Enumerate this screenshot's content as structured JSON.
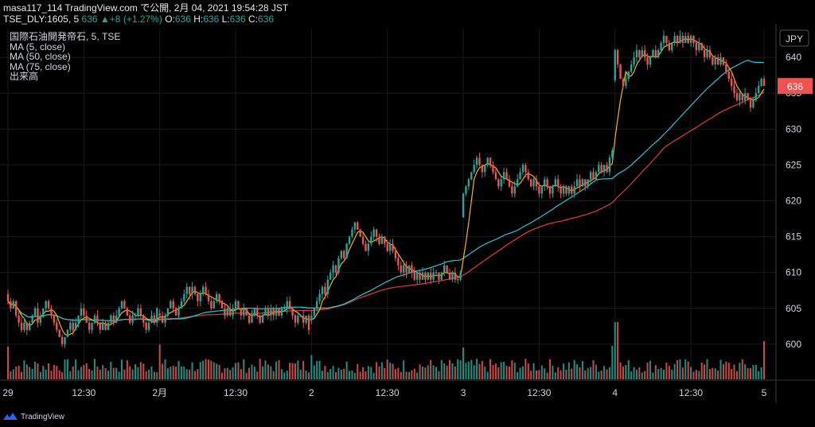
{
  "header": {
    "line1": "masa117_114 TradingView.com で公開, 2月 04, 2021 19:54:28 JST",
    "symbol": "TSE_DLY:1605, 5",
    "last": "636",
    "change": "+8 (+1.27%)",
    "o_label": "O:",
    "o_value": "636",
    "h_label": "H:",
    "h_value": "636",
    "l_label": "L:",
    "l_value": "636",
    "c_label": "C:",
    "c_value": "636"
  },
  "legend": {
    "title": "国際石油開発帝石, 5, TSE",
    "ma5": "MA (5, close)",
    "ma50": "MA (50, close)",
    "ma75": "MA (75, close)",
    "volume": "出来高"
  },
  "price_axis": {
    "currency": "JPY",
    "current_price_label": "636"
  },
  "branding": {
    "logo_text": "TradingView"
  },
  "colors": {
    "up": "#26a69a",
    "down": "#ef5350",
    "ma5": "#f5b700",
    "ma50": "#26c6da",
    "ma75": "#e53935",
    "background": "#000000",
    "grid": "#1a1a1a"
  },
  "chart_data": {
    "type": "candlestick",
    "title": "国際石油開発帝石, 5, TSE",
    "ylabel": "JPY",
    "ylim": [
      595,
      644
    ],
    "yticks": [
      600,
      605,
      610,
      615,
      620,
      625,
      630,
      635,
      640
    ],
    "xtick_labels": [
      "29",
      "12:30",
      "2月",
      "12:30",
      "2",
      "12:30",
      "3",
      "12:30",
      "4",
      "12:30",
      "5"
    ],
    "grid": true,
    "last_price": 636,
    "days": [
      {
        "label": "1/29",
        "closes": [
          606,
          605,
          606,
          604,
          603,
          602,
          603,
          602,
          603,
          604,
          605,
          603,
          604,
          605,
          606,
          605,
          604,
          603,
          602,
          601,
          600,
          601,
          602,
          603,
          602,
          603,
          604,
          605,
          604,
          603,
          602,
          603,
          604,
          603,
          602,
          603,
          602,
          603,
          604,
          603,
          604,
          605,
          606,
          605,
          604,
          603,
          604,
          604,
          605,
          604,
          603,
          602,
          603,
          604,
          603,
          605
        ]
      },
      {
        "label": "2/1",
        "closes": [
          604,
          603,
          604,
          605,
          606,
          605,
          604,
          605,
          606,
          607,
          608,
          607,
          608,
          607,
          606,
          607,
          608,
          607,
          606,
          605,
          606,
          607,
          606,
          605,
          604,
          605,
          604,
          605,
          606,
          605,
          604,
          605,
          604,
          603,
          604,
          605,
          604,
          603,
          604,
          605,
          604,
          605,
          604,
          605,
          604,
          605,
          605,
          606,
          605,
          604,
          603,
          604,
          604,
          603,
          604,
          602
        ]
      },
      {
        "label": "2/2",
        "closes": [
          604,
          605,
          606,
          607,
          608,
          607,
          609,
          610,
          611,
          610,
          612,
          613,
          612,
          614,
          615,
          616,
          617,
          616,
          615,
          614,
          613,
          614,
          615,
          616,
          615,
          614,
          615,
          614,
          613,
          614,
          613,
          612,
          611,
          610,
          611,
          610,
          611,
          610,
          609,
          610,
          609,
          610,
          609,
          610,
          609,
          610,
          610,
          609,
          610,
          611,
          610,
          609,
          610,
          609,
          609,
          610
        ]
      },
      {
        "label": "2/3",
        "closes": [
          621,
          622,
          623,
          624,
          625,
          626,
          625,
          624,
          625,
          626,
          625,
          624,
          623,
          622,
          623,
          624,
          623,
          622,
          621,
          622,
          623,
          624,
          625,
          624,
          623,
          622,
          623,
          622,
          621,
          622,
          623,
          622,
          621,
          622,
          623,
          622,
          621,
          622,
          621,
          622,
          621,
          622,
          623,
          622,
          623,
          622,
          623,
          624,
          623,
          624,
          625,
          624,
          625,
          624,
          626,
          627
        ]
      },
      {
        "label": "2/4",
        "closes": [
          641,
          639,
          637,
          636,
          637,
          638,
          639,
          640,
          641,
          640,
          641,
          640,
          639,
          640,
          641,
          640,
          641,
          642,
          643,
          642,
          641,
          642,
          643,
          642,
          643,
          642,
          643,
          642,
          643,
          642,
          641,
          642,
          641,
          640,
          641,
          640,
          639,
          640,
          639,
          640,
          639,
          638,
          637,
          636,
          635,
          634,
          635,
          634,
          635,
          634,
          633,
          634,
          635,
          636,
          637,
          636
        ]
      }
    ],
    "volume_range": [
      0,
      100
    ]
  }
}
